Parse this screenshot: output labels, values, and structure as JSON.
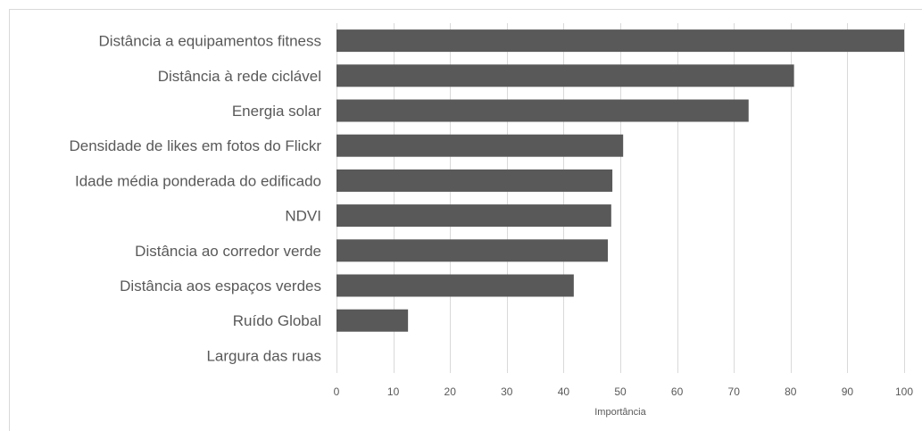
{
  "chart_data": {
    "type": "bar",
    "orientation": "horizontal",
    "categories": [
      "Distância a equipamentos fitness",
      "Distância  à rede ciclável",
      "Energia solar",
      "Densidade de likes em fotos do Flickr",
      "Idade média ponderada do edificado",
      "NDVI",
      "Distância ao corredor verde",
      "Distância aos espaços verdes",
      "Ruído Global",
      "Largura das ruas"
    ],
    "values": [
      100,
      80.6,
      72.6,
      50.5,
      48.6,
      48.4,
      47.8,
      41.8,
      12.6,
      0
    ],
    "title": "",
    "xlabel": "Importância",
    "ylabel": "",
    "xlim": [
      0,
      100
    ],
    "xticks": [
      "0",
      "10",
      "20",
      "30",
      "40",
      "50",
      "60",
      "70",
      "80",
      "90",
      "100"
    ],
    "grid": "vertical",
    "legend": "none",
    "colors": {
      "bar": "#595959",
      "grid": "#d9d9d9",
      "text": "#595959",
      "frame": "#d9d9d9"
    }
  }
}
